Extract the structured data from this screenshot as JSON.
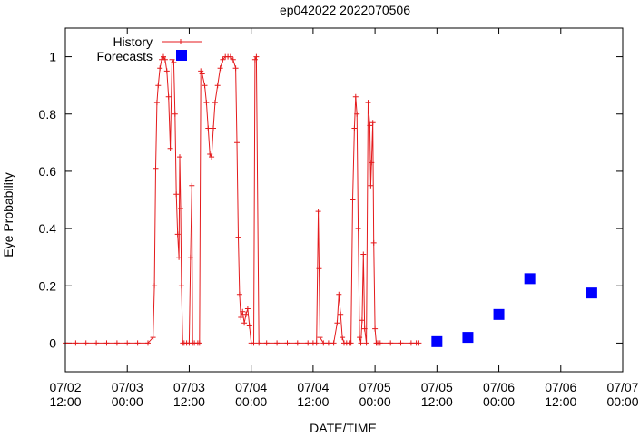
{
  "chart_data": {
    "type": "line",
    "title": "ep042022 2022070506",
    "xlabel": "DATE/TIME",
    "ylabel": "Eye Probability",
    "xlim": [
      "07/02 12:00",
      "07/07 00:00"
    ],
    "ylim": [
      -0.1,
      1.1
    ],
    "grid": false,
    "legend_position": "top-left",
    "x_ticks": [
      {
        "value": "07/02 12:00",
        "line1": "07/02",
        "line2": "12:00"
      },
      {
        "value": "07/03 00:00",
        "line1": "07/03",
        "line2": "00:00"
      },
      {
        "value": "07/03 12:00",
        "line1": "07/03",
        "line2": "12:00"
      },
      {
        "value": "07/04 00:00",
        "line1": "07/04",
        "line2": "00:00"
      },
      {
        "value": "07/04 12:00",
        "line1": "07/04",
        "line2": "12:00"
      },
      {
        "value": "07/05 00:00",
        "line1": "07/05",
        "line2": "00:00"
      },
      {
        "value": "07/05 12:00",
        "line1": "07/05",
        "line2": "12:00"
      },
      {
        "value": "07/06 00:00",
        "line1": "07/06",
        "line2": "00:00"
      },
      {
        "value": "07/06 12:00",
        "line1": "07/06",
        "line2": "12:00"
      },
      {
        "value": "07/07 00:00",
        "line1": "07/07",
        "line2": "00:00"
      }
    ],
    "y_ticks": [
      {
        "value": 0,
        "label": "0"
      },
      {
        "value": 0.2,
        "label": "0.2"
      },
      {
        "value": 0.4,
        "label": "0.4"
      },
      {
        "value": 0.6,
        "label": "0.6"
      },
      {
        "value": 0.8,
        "label": "0.8"
      },
      {
        "value": 1,
        "label": "1"
      }
    ],
    "series": [
      {
        "name": "History",
        "style": "line+cross",
        "color": "#e41a1c",
        "points": [
          [
            "07/02 12:00",
            0.0
          ],
          [
            "07/02 14:00",
            0.0
          ],
          [
            "07/02 16:00",
            0.0
          ],
          [
            "07/02 18:00",
            0.0
          ],
          [
            "07/02 20:00",
            0.0
          ],
          [
            "07/02 22:00",
            0.0
          ],
          [
            "07/03 00:00",
            0.0
          ],
          [
            "07/03 02:00",
            0.0
          ],
          [
            "07/03 04:00",
            0.0
          ],
          [
            "07/03 05:00",
            0.02
          ],
          [
            "07/03 05:15",
            0.2
          ],
          [
            "07/03 05:30",
            0.61
          ],
          [
            "07/03 05:45",
            0.84
          ],
          [
            "07/03 06:00",
            0.9
          ],
          [
            "07/03 06:20",
            0.96
          ],
          [
            "07/03 06:40",
            0.99
          ],
          [
            "07/03 07:00",
            1.0
          ],
          [
            "07/03 07:20",
            0.99
          ],
          [
            "07/03 07:40",
            0.95
          ],
          [
            "07/03 08:00",
            0.86
          ],
          [
            "07/03 08:20",
            0.68
          ],
          [
            "07/03 08:40",
            0.99
          ],
          [
            "07/03 09:00",
            0.98
          ],
          [
            "07/03 09:15",
            0.8
          ],
          [
            "07/03 09:30",
            0.52
          ],
          [
            "07/03 09:45",
            0.38
          ],
          [
            "07/03 10:00",
            0.3
          ],
          [
            "07/03 10:10",
            0.65
          ],
          [
            "07/03 10:20",
            0.47
          ],
          [
            "07/03 10:30",
            0.2
          ],
          [
            "07/03 10:45",
            0.0
          ],
          [
            "07/03 11:00",
            0.0
          ],
          [
            "07/03 11:30",
            0.0
          ],
          [
            "07/03 12:00",
            0.0
          ],
          [
            "07/03 12:15",
            0.3
          ],
          [
            "07/03 12:30",
            0.55
          ],
          [
            "07/03 12:40",
            0.0
          ],
          [
            "07/03 13:00",
            0.0
          ],
          [
            "07/03 13:40",
            0.0
          ],
          [
            "07/03 14:00",
            0.0
          ],
          [
            "07/03 14:15",
            0.95
          ],
          [
            "07/03 14:30",
            0.94
          ],
          [
            "07/03 15:00",
            0.9
          ],
          [
            "07/03 15:20",
            0.84
          ],
          [
            "07/03 15:40",
            0.75
          ],
          [
            "07/03 16:00",
            0.66
          ],
          [
            "07/03 16:20",
            0.65
          ],
          [
            "07/03 16:40",
            0.75
          ],
          [
            "07/03 17:00",
            0.84
          ],
          [
            "07/03 17:30",
            0.9
          ],
          [
            "07/03 18:00",
            0.96
          ],
          [
            "07/03 18:30",
            0.99
          ],
          [
            "07/03 19:00",
            1.0
          ],
          [
            "07/03 19:30",
            1.0
          ],
          [
            "07/03 20:00",
            1.0
          ],
          [
            "07/03 20:30",
            0.99
          ],
          [
            "07/03 21:00",
            0.96
          ],
          [
            "07/03 21:15",
            0.7
          ],
          [
            "07/03 21:30",
            0.37
          ],
          [
            "07/03 21:45",
            0.17
          ],
          [
            "07/03 22:00",
            0.09
          ],
          [
            "07/03 22:20",
            0.11
          ],
          [
            "07/03 22:40",
            0.07
          ],
          [
            "07/03 23:00",
            0.1
          ],
          [
            "07/03 23:20",
            0.12
          ],
          [
            "07/03 23:40",
            0.06
          ],
          [
            "07/04 00:00",
            0.0
          ],
          [
            "07/04 00:30",
            0.0
          ],
          [
            "07/04 00:45",
            0.99
          ],
          [
            "07/04 01:00",
            1.0
          ],
          [
            "07/04 01:30",
            0.0
          ],
          [
            "07/04 03:00",
            0.0
          ],
          [
            "07/04 05:00",
            0.0
          ],
          [
            "07/04 07:00",
            0.0
          ],
          [
            "07/04 09:00",
            0.0
          ],
          [
            "07/04 11:00",
            0.0
          ],
          [
            "07/04 12:00",
            0.0
          ],
          [
            "07/04 12:40",
            0.0
          ],
          [
            "07/04 13:00",
            0.46
          ],
          [
            "07/04 13:10",
            0.26
          ],
          [
            "07/04 13:20",
            0.02
          ],
          [
            "07/04 14:00",
            0.0
          ],
          [
            "07/04 15:00",
            0.0
          ],
          [
            "07/04 16:00",
            0.0
          ],
          [
            "07/04 16:40",
            0.07
          ],
          [
            "07/04 17:00",
            0.17
          ],
          [
            "07/04 17:20",
            0.1
          ],
          [
            "07/04 17:40",
            0.02
          ],
          [
            "07/04 18:00",
            0.0
          ],
          [
            "07/04 18:30",
            0.0
          ],
          [
            "07/04 19:00",
            0.0
          ],
          [
            "07/04 19:20",
            0.0
          ],
          [
            "07/04 19:40",
            0.5
          ],
          [
            "07/04 20:00",
            0.75
          ],
          [
            "07/04 20:15",
            0.86
          ],
          [
            "07/04 20:30",
            0.8
          ],
          [
            "07/04 20:45",
            0.4
          ],
          [
            "07/04 21:00",
            0.02
          ],
          [
            "07/04 21:15",
            0.0
          ],
          [
            "07/04 21:30",
            0.08
          ],
          [
            "07/04 21:45",
            0.31
          ],
          [
            "07/04 22:00",
            0.05
          ],
          [
            "07/04 22:20",
            0.0
          ],
          [
            "07/04 22:40",
            0.84
          ],
          [
            "07/04 23:00",
            0.76
          ],
          [
            "07/04 23:10",
            0.55
          ],
          [
            "07/04 23:20",
            0.63
          ],
          [
            "07/04 23:35",
            0.77
          ],
          [
            "07/04 23:45",
            0.35
          ],
          [
            "07/05 00:00",
            0.05
          ],
          [
            "07/05 00:15",
            0.0
          ],
          [
            "07/05 00:30",
            0.0
          ],
          [
            "07/05 01:00",
            0.0
          ],
          [
            "07/05 03:00",
            0.0
          ],
          [
            "07/05 05:00",
            0.0
          ],
          [
            "07/05 07:00",
            0.0
          ],
          [
            "07/05 08:00",
            0.0
          ],
          [
            "07/05 08:30",
            0.0
          ]
        ]
      },
      {
        "name": "Forecasts",
        "style": "square",
        "color": "#0000ff",
        "points": [
          [
            "07/05 12:00",
            0.005
          ],
          [
            "07/05 18:00",
            0.02
          ],
          [
            "07/06 00:00",
            0.1
          ],
          [
            "07/06 06:00",
            0.225
          ],
          [
            "07/06 18:00",
            0.175
          ]
        ]
      }
    ]
  }
}
